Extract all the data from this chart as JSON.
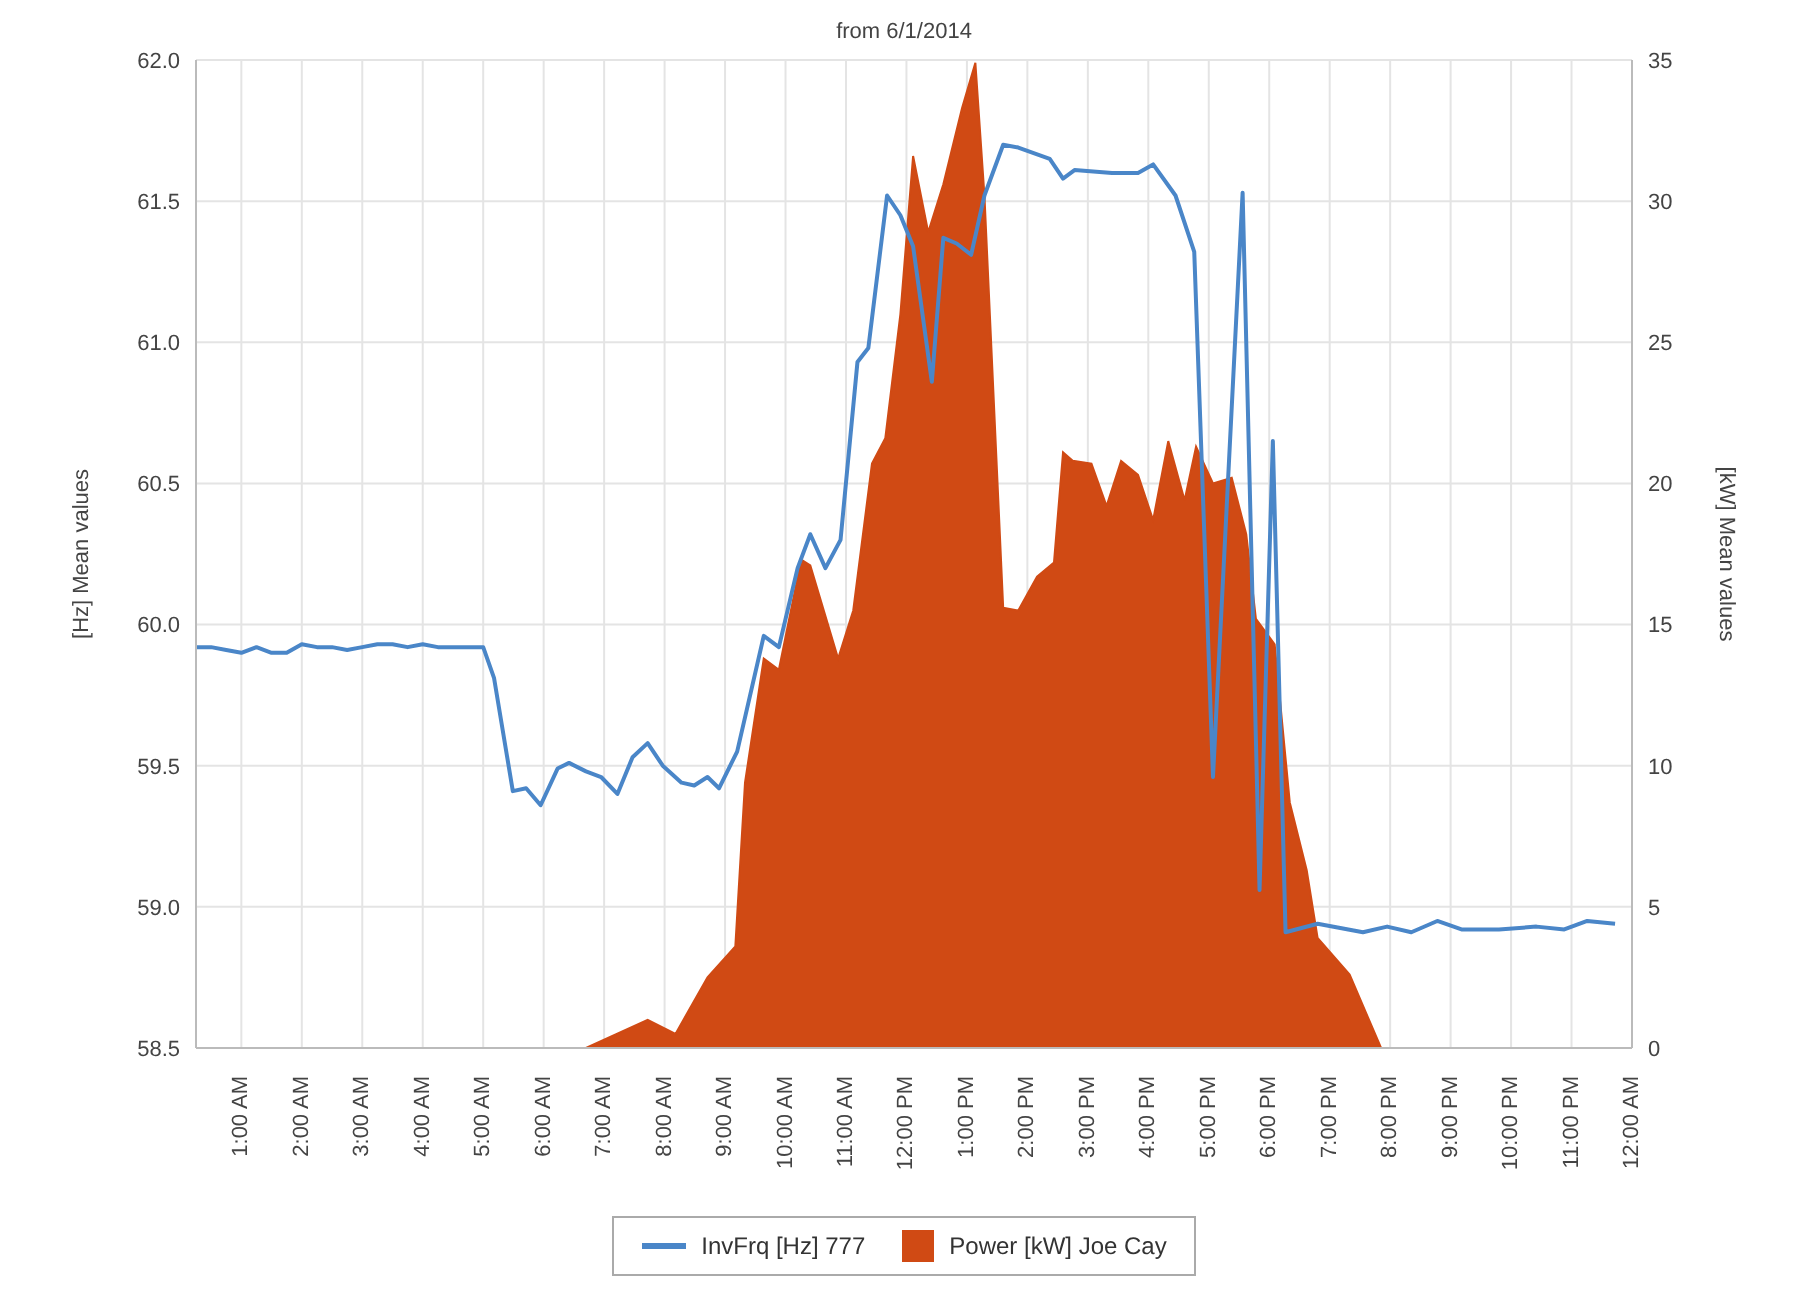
{
  "chart_data": {
    "type": "line",
    "title": "from 6/1/2014",
    "ylabel": "[Hz] Mean values",
    "y2label": "[kW] Mean values",
    "xlim": [
      0.25,
      24
    ],
    "xticks": [
      {
        "value": 1,
        "label": "1:00 AM"
      },
      {
        "value": 2,
        "label": "2:00 AM"
      },
      {
        "value": 3,
        "label": "3:00 AM"
      },
      {
        "value": 4,
        "label": "4:00 AM"
      },
      {
        "value": 5,
        "label": "5:00 AM"
      },
      {
        "value": 6,
        "label": "6:00 AM"
      },
      {
        "value": 7,
        "label": "7:00 AM"
      },
      {
        "value": 8,
        "label": "8:00 AM"
      },
      {
        "value": 9,
        "label": "9:00 AM"
      },
      {
        "value": 10,
        "label": "10:00 AM"
      },
      {
        "value": 11,
        "label": "11:00 AM"
      },
      {
        "value": 12,
        "label": "12:00 PM"
      },
      {
        "value": 13,
        "label": "1:00 PM"
      },
      {
        "value": 14,
        "label": "2:00 PM"
      },
      {
        "value": 15,
        "label": "3:00 PM"
      },
      {
        "value": 16,
        "label": "4:00 PM"
      },
      {
        "value": 17,
        "label": "5:00 PM"
      },
      {
        "value": 18,
        "label": "6:00 PM"
      },
      {
        "value": 19,
        "label": "7:00 PM"
      },
      {
        "value": 20,
        "label": "8:00 PM"
      },
      {
        "value": 21,
        "label": "9:00 PM"
      },
      {
        "value": 22,
        "label": "10:00 PM"
      },
      {
        "value": 23,
        "label": "11:00 PM"
      },
      {
        "value": 24,
        "label": "12:00 AM"
      }
    ],
    "ylim": [
      58.5,
      62
    ],
    "yticks": [
      58.5,
      {
        "value": 59,
        "label": "59.0"
      },
      59.5,
      {
        "value": 60,
        "label": "60.0"
      },
      60.5,
      {
        "value": 61,
        "label": "61.0"
      },
      61.5,
      {
        "value": 62,
        "label": "62.0"
      }
    ],
    "y2lim": [
      0,
      35
    ],
    "y2ticks": [
      0,
      5,
      10,
      15,
      20,
      25,
      30,
      35
    ],
    "grid": true,
    "legend": "bottom",
    "marker": "none",
    "series": [
      {
        "name": "InvFrq [Hz] 777",
        "color": "#4a86c8",
        "x": [
          0.25,
          0.5,
          0.75,
          1.0,
          1.25,
          1.5,
          1.75,
          2.0,
          2.25,
          2.5,
          2.75,
          3.0,
          3.25,
          3.5,
          3.75,
          4.0,
          4.25,
          4.5,
          4.75,
          5.0,
          5.18,
          5.49,
          5.71,
          5.95,
          6.23,
          6.42,
          6.7,
          6.95,
          7.22,
          7.47,
          7.72,
          7.97,
          8.28,
          8.49,
          8.71,
          8.9,
          9.2,
          9.64,
          9.89,
          10.2,
          10.41,
          10.66,
          10.91,
          11.19,
          11.37,
          11.68,
          11.9,
          12.11,
          12.42,
          12.61,
          12.83,
          13.07,
          13.29,
          13.6,
          13.85,
          14.37,
          14.59,
          14.78,
          15.4,
          15.83,
          16.08,
          16.45,
          16.76,
          17.07,
          17.56,
          17.84,
          18.06,
          18.27,
          18.8,
          19.55,
          19.95,
          20.35,
          20.78,
          21.18,
          21.8,
          22.42,
          22.88,
          23.26,
          23.72
        ],
        "values": [
          59.92,
          59.92,
          59.91,
          59.9,
          59.92,
          59.9,
          59.9,
          59.93,
          59.92,
          59.92,
          59.91,
          59.92,
          59.93,
          59.93,
          59.92,
          59.93,
          59.92,
          59.92,
          59.92,
          59.92,
          59.81,
          59.41,
          59.42,
          59.36,
          59.49,
          59.51,
          59.48,
          59.46,
          59.4,
          59.53,
          59.58,
          59.5,
          59.44,
          59.43,
          59.46,
          59.42,
          59.55,
          59.96,
          59.92,
          60.2,
          60.32,
          60.2,
          60.3,
          60.93,
          60.98,
          61.52,
          61.45,
          61.34,
          60.86,
          61.37,
          61.35,
          61.31,
          61.52,
          61.7,
          61.69,
          61.65,
          61.58,
          61.61,
          61.6,
          61.6,
          61.63,
          61.52,
          61.32,
          59.46,
          61.53,
          59.06,
          60.65,
          58.91,
          58.94,
          58.91,
          58.93,
          58.91,
          58.95,
          58.92,
          58.92,
          58.93,
          58.92,
          58.95,
          58.94
        ]
      },
      {
        "name": "Power [kW] Joe Cay",
        "type": "area",
        "axis": "y2",
        "color": "#d04a14",
        "x": [
          6.7,
          7.72,
          8.18,
          8.71,
          9.17,
          9.33,
          9.64,
          9.89,
          10.26,
          10.41,
          10.87,
          11.12,
          11.43,
          11.65,
          11.9,
          12.11,
          12.36,
          12.61,
          12.92,
          13.14,
          13.29,
          13.6,
          13.85,
          14.16,
          14.44,
          14.59,
          14.75,
          15.06,
          15.31,
          15.55,
          15.83,
          16.08,
          16.33,
          16.6,
          16.79,
          17.07,
          17.38,
          17.62,
          17.78,
          18.09,
          18.34,
          18.62,
          18.8,
          19.33,
          19.85
        ],
        "values": [
          0,
          1.0,
          0.5,
          2.5,
          3.6,
          9.4,
          13.8,
          13.4,
          17.3,
          17.1,
          13.8,
          15.5,
          20.7,
          21.6,
          26.0,
          31.6,
          28.9,
          30.6,
          33.3,
          34.9,
          30.2,
          15.6,
          15.5,
          16.7,
          17.2,
          21.1,
          20.8,
          20.7,
          19.2,
          20.8,
          20.3,
          18.7,
          21.5,
          19.4,
          21.3,
          20.0,
          20.2,
          18.2,
          15.2,
          14.3,
          8.7,
          6.3,
          3.9,
          2.6,
          0
        ]
      }
    ]
  }
}
